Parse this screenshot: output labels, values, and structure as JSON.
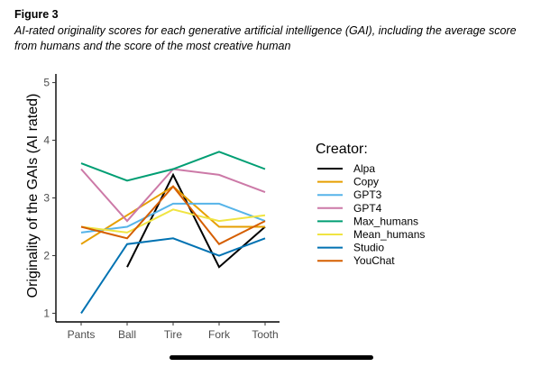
{
  "figure": {
    "label": "Figure 3",
    "caption": "AI-rated originality scores for each generative artificial intelligence (GAI), including the average score from humans and the score of the most creative human"
  },
  "chart_data": {
    "type": "line",
    "categories": [
      "Pants",
      "Ball",
      "Tire",
      "Fork",
      "Tooth"
    ],
    "ylabel": "Originality of the GAIs (AI rated)",
    "xlabel": "",
    "ylim": [
      0.85,
      5.15
    ],
    "yticks": [
      1,
      2,
      3,
      4,
      5
    ],
    "legend_title": "Creator:",
    "legend_position": "right",
    "grid": false,
    "series": [
      {
        "name": "Alpa",
        "color": "#000000",
        "values": [
          null,
          1.8,
          3.4,
          1.8,
          2.5
        ]
      },
      {
        "name": "Copy",
        "color": "#E69F00",
        "values": [
          2.2,
          2.7,
          3.2,
          2.5,
          2.5
        ]
      },
      {
        "name": "GPT3",
        "color": "#56B4E9",
        "values": [
          2.4,
          2.5,
          2.9,
          2.9,
          2.6
        ]
      },
      {
        "name": "GPT4",
        "color": "#CC79A7",
        "values": [
          3.5,
          2.6,
          3.5,
          3.4,
          3.1
        ]
      },
      {
        "name": "Max_humans",
        "color": "#009E73",
        "values": [
          3.6,
          3.3,
          3.5,
          3.8,
          3.5
        ]
      },
      {
        "name": "Mean_humans",
        "color": "#F0E442",
        "values": [
          2.5,
          2.4,
          2.8,
          2.6,
          2.7
        ]
      },
      {
        "name": "Studio",
        "color": "#0072B2",
        "values": [
          1.0,
          2.2,
          2.3,
          2.0,
          2.3
        ]
      },
      {
        "name": "YouChat",
        "color": "#D55E00",
        "values": [
          2.5,
          2.3,
          3.2,
          2.2,
          2.6
        ]
      }
    ]
  }
}
